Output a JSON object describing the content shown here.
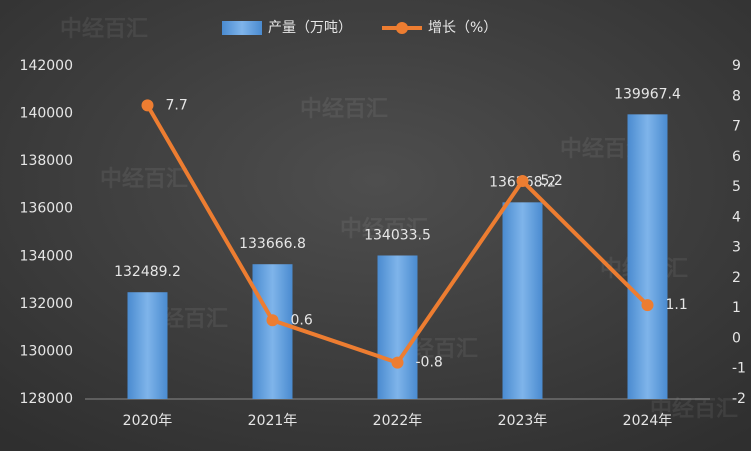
{
  "chart_data": {
    "type": "bar-line",
    "watermark": "中经百汇",
    "categories": [
      "2020年",
      "2021年",
      "2022年",
      "2023年",
      "2024年"
    ],
    "series": [
      {
        "name": "产量（万吨）",
        "type": "bar",
        "color": "#5b9bd5",
        "values": [
          132489.2,
          133666.8,
          134033.5,
          136268.2,
          139967.4
        ]
      },
      {
        "name": "增长（%）",
        "type": "line",
        "color": "#ed7d31",
        "axis": "y2",
        "values": [
          7.7,
          0.6,
          -0.8,
          5.2,
          1.1
        ]
      }
    ],
    "ylim": [
      128000,
      142000
    ],
    "yticks": [
      128000,
      130000,
      132000,
      134000,
      136000,
      138000,
      140000,
      142000
    ],
    "y2lim": [
      -2,
      9
    ],
    "y2ticks": [
      -2,
      -1,
      0,
      1,
      2,
      3,
      4,
      5,
      6,
      7,
      8,
      9
    ]
  }
}
